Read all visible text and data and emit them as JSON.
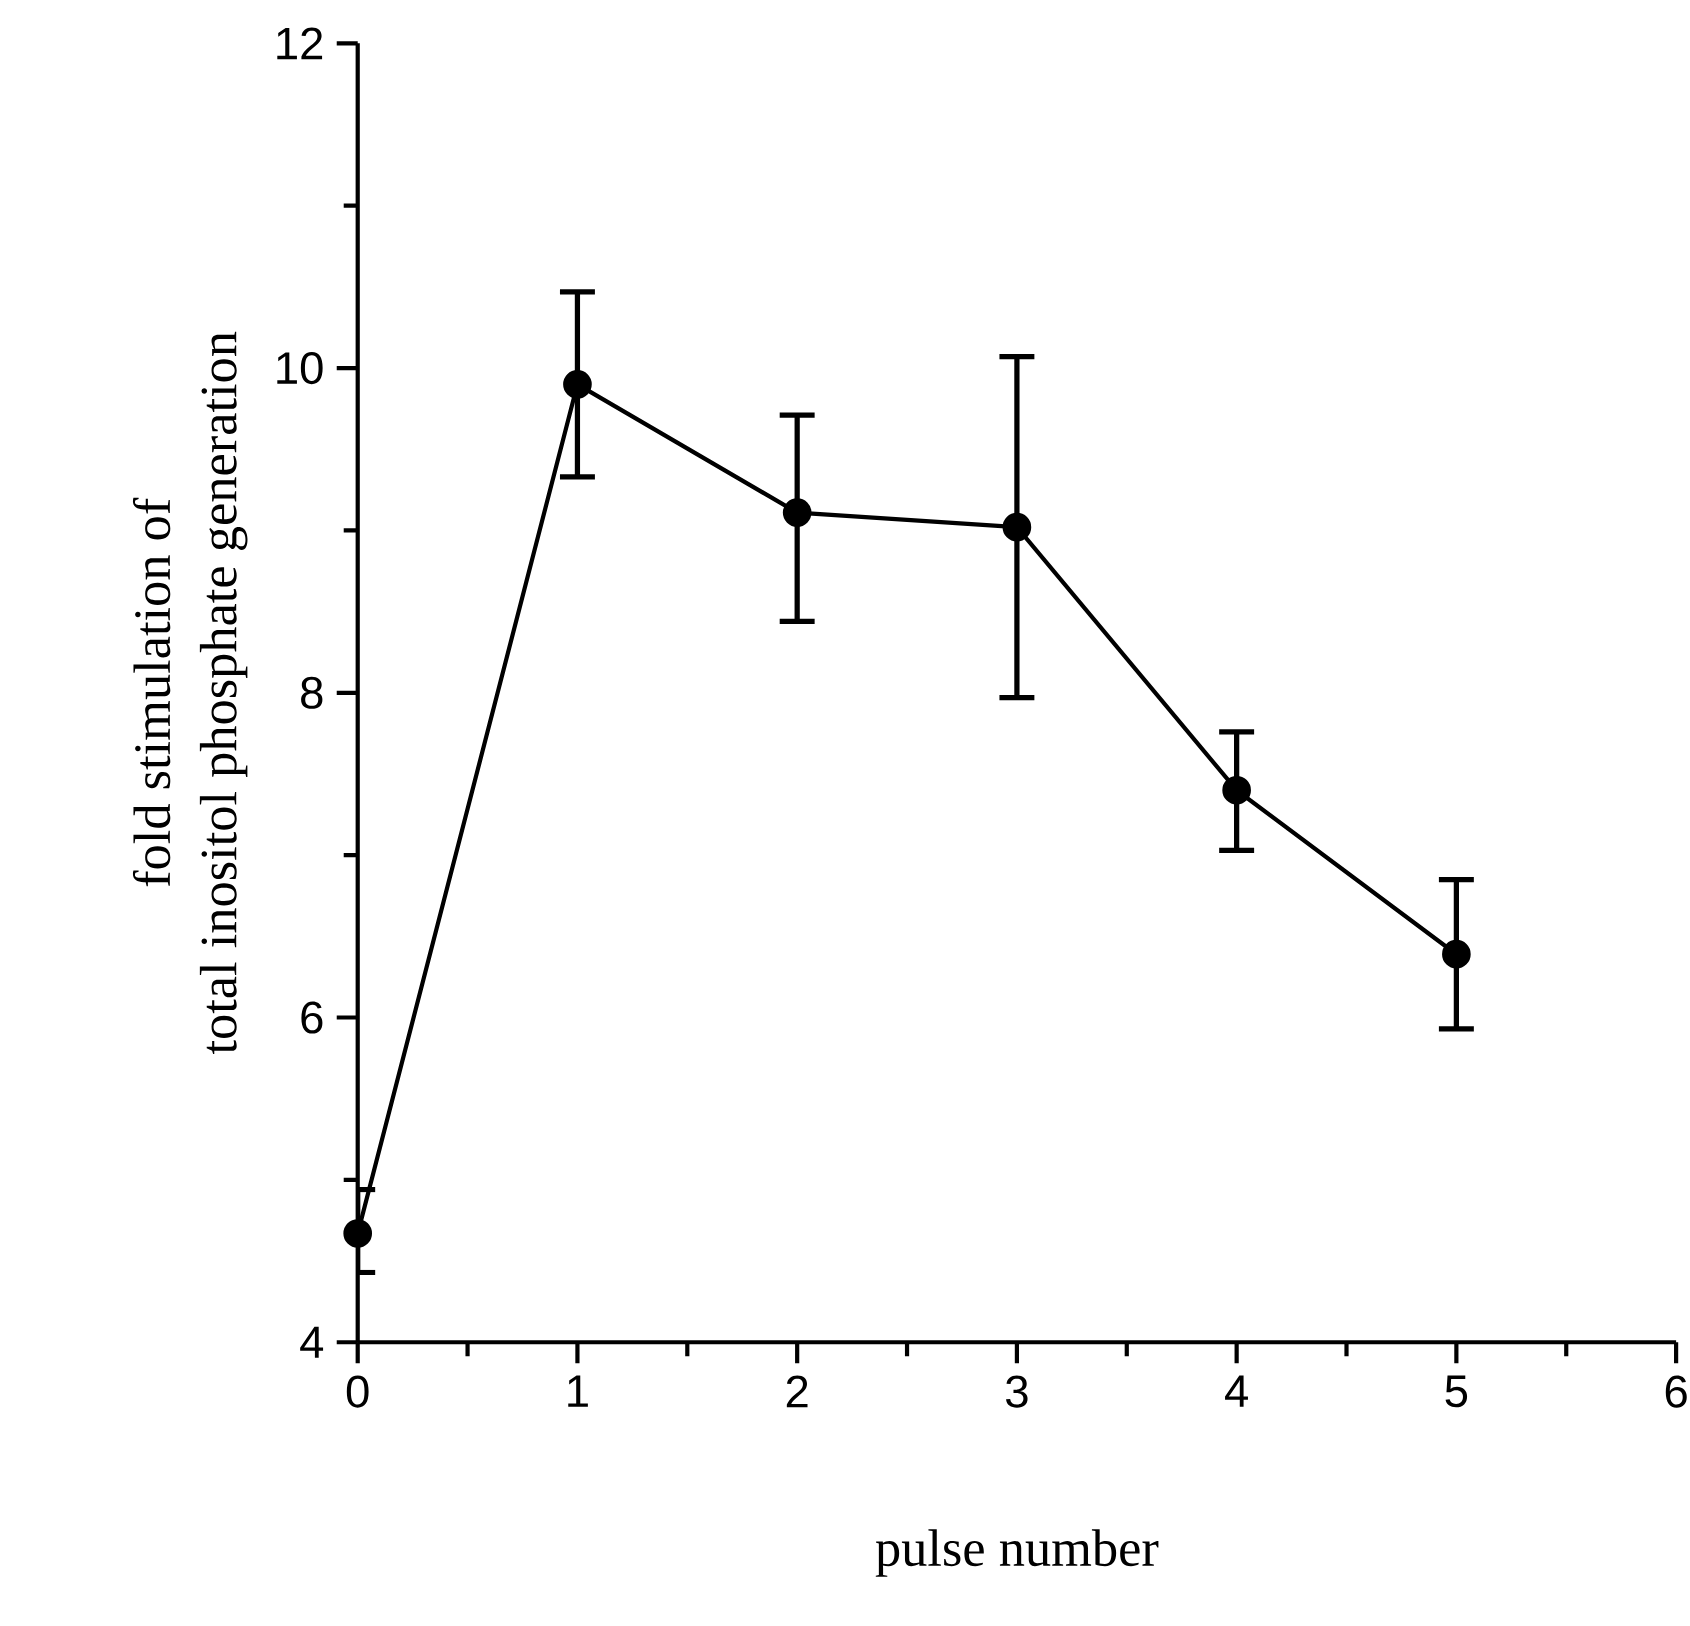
{
  "chart_data": {
    "type": "line",
    "xlabel": "pulse number",
    "ylabel": "fold stimulation of\ntotal inositol phosphate generation",
    "x": [
      0,
      1,
      2,
      3,
      4,
      5
    ],
    "values": [
      4.67,
      9.9,
      9.11,
      9.02,
      7.4,
      6.39
    ],
    "errors": [
      [
        4.43,
        4.94
      ],
      [
        9.33,
        10.47
      ],
      [
        8.44,
        9.71
      ],
      [
        7.97,
        10.07
      ],
      [
        7.03,
        7.76
      ],
      [
        5.93,
        6.85
      ]
    ],
    "color": "#000000",
    "marker": "circle",
    "line_style": "solid",
    "grid": false,
    "xlim": [
      0,
      6
    ],
    "xticks": [
      0,
      1,
      2,
      3,
      4,
      5,
      6
    ],
    "ylim": [
      4,
      12
    ],
    "yticks": [
      4,
      6,
      8,
      10,
      12
    ]
  }
}
